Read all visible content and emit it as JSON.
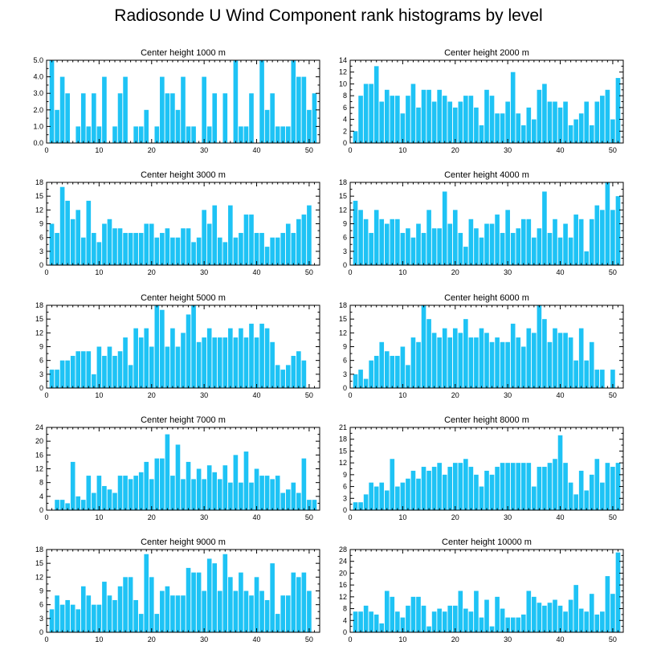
{
  "figure_title": "Radiosonde U Wind Component rank histograms by level",
  "colors": {
    "bar": "#1ec3f5",
    "axis": "#000000",
    "background": "#ffffff"
  },
  "chart_data": [
    {
      "type": "bar",
      "title": "Center height 1000 m",
      "xlim": [
        0,
        52
      ],
      "xticks": [
        0,
        10,
        20,
        30,
        40,
        50
      ],
      "ylim": [
        0,
        5
      ],
      "yticks": [
        "0.0",
        "1.0",
        "2.0",
        "3.0",
        "4.0",
        "5.0"
      ],
      "x": [
        1,
        2,
        3,
        4,
        5,
        6,
        7,
        8,
        9,
        10,
        11,
        12,
        13,
        14,
        15,
        16,
        17,
        18,
        19,
        20,
        21,
        22,
        23,
        24,
        25,
        26,
        27,
        28,
        29,
        30,
        31,
        32,
        33,
        34,
        35,
        36,
        37,
        38,
        39,
        40,
        41,
        42,
        43,
        44,
        45,
        46,
        47,
        48,
        49,
        50,
        51
      ],
      "values": [
        5,
        2,
        4,
        3,
        0,
        1,
        3,
        1,
        3,
        1,
        4,
        0,
        1,
        3,
        4,
        0,
        1,
        1,
        2,
        0,
        1,
        4,
        3,
        3,
        2,
        4,
        1,
        1,
        0,
        4,
        1,
        3,
        0,
        3,
        0,
        5,
        1,
        1,
        3,
        0,
        5,
        2,
        3,
        1,
        1,
        1,
        5,
        4,
        4,
        2,
        3
      ]
    },
    {
      "type": "bar",
      "title": "Center height 2000 m",
      "xlim": [
        0,
        52
      ],
      "xticks": [
        0,
        10,
        20,
        30,
        40,
        50
      ],
      "ylim": [
        0,
        14
      ],
      "yticks": [
        "0",
        "2",
        "4",
        "6",
        "8",
        "10",
        "12",
        "14"
      ],
      "x": [
        1,
        2,
        3,
        4,
        5,
        6,
        7,
        8,
        9,
        10,
        11,
        12,
        13,
        14,
        15,
        16,
        17,
        18,
        19,
        20,
        21,
        22,
        23,
        24,
        25,
        26,
        27,
        28,
        29,
        30,
        31,
        32,
        33,
        34,
        35,
        36,
        37,
        38,
        39,
        40,
        41,
        42,
        43,
        44,
        45,
        46,
        47,
        48,
        49,
        50,
        51
      ],
      "values": [
        2,
        8,
        10,
        10,
        13,
        7,
        9,
        8,
        8,
        5,
        8,
        10,
        6,
        9,
        9,
        7,
        9,
        8,
        7,
        6,
        7,
        8,
        8,
        6,
        3,
        9,
        8,
        5,
        5,
        7,
        12,
        5,
        3,
        6,
        4,
        9,
        10,
        7,
        7,
        6,
        7,
        3,
        4,
        5,
        7,
        3,
        7,
        8,
        9,
        4,
        11
      ]
    },
    {
      "type": "bar",
      "title": "Center height 3000 m",
      "xlim": [
        0,
        52
      ],
      "xticks": [
        0,
        10,
        20,
        30,
        40,
        50
      ],
      "ylim": [
        0,
        18
      ],
      "yticks": [
        "0",
        "3",
        "6",
        "9",
        "12",
        "15",
        "18"
      ],
      "x": [
        1,
        2,
        3,
        4,
        5,
        6,
        7,
        8,
        9,
        10,
        11,
        12,
        13,
        14,
        15,
        16,
        17,
        18,
        19,
        20,
        21,
        22,
        23,
        24,
        25,
        26,
        27,
        28,
        29,
        30,
        31,
        32,
        33,
        34,
        35,
        36,
        37,
        38,
        39,
        40,
        41,
        42,
        43,
        44,
        45,
        46,
        47,
        48,
        49,
        50,
        51
      ],
      "values": [
        9,
        7,
        17,
        14,
        10,
        12,
        6,
        14,
        7,
        5,
        9,
        10,
        8,
        8,
        7,
        7,
        7,
        7,
        9,
        9,
        6,
        7,
        8,
        6,
        6,
        8,
        8,
        5,
        6,
        12,
        9,
        13,
        6,
        5,
        13,
        6,
        7,
        11,
        11,
        7,
        7,
        4,
        6,
        6,
        7,
        9,
        7,
        10,
        11,
        13,
        0
      ]
    },
    {
      "type": "bar",
      "title": "Center height 4000 m",
      "xlim": [
        0,
        52
      ],
      "xticks": [
        0,
        10,
        20,
        30,
        40,
        50
      ],
      "ylim": [
        0,
        18
      ],
      "yticks": [
        "0",
        "3",
        "6",
        "9",
        "12",
        "15",
        "18"
      ],
      "x": [
        1,
        2,
        3,
        4,
        5,
        6,
        7,
        8,
        9,
        10,
        11,
        12,
        13,
        14,
        15,
        16,
        17,
        18,
        19,
        20,
        21,
        22,
        23,
        24,
        25,
        26,
        27,
        28,
        29,
        30,
        31,
        32,
        33,
        34,
        35,
        36,
        37,
        38,
        39,
        40,
        41,
        42,
        43,
        44,
        45,
        46,
        47,
        48,
        49,
        50,
        51
      ],
      "values": [
        14,
        12,
        10,
        7,
        12,
        10,
        9,
        10,
        10,
        7,
        8,
        6,
        9,
        7,
        12,
        8,
        8,
        16,
        9,
        12,
        7,
        4,
        10,
        8,
        6,
        9,
        9,
        11,
        7,
        12,
        7,
        8,
        10,
        10,
        6,
        8,
        16,
        7,
        10,
        6,
        9,
        6,
        11,
        10,
        3,
        10,
        13,
        12,
        18,
        12,
        15
      ]
    },
    {
      "type": "bar",
      "title": "Center height 5000 m",
      "xlim": [
        0,
        52
      ],
      "xticks": [
        0,
        10,
        20,
        30,
        40,
        50
      ],
      "ylim": [
        0,
        18
      ],
      "yticks": [
        "0",
        "3",
        "6",
        "9",
        "12",
        "15",
        "18"
      ],
      "x": [
        1,
        2,
        3,
        4,
        5,
        6,
        7,
        8,
        9,
        10,
        11,
        12,
        13,
        14,
        15,
        16,
        17,
        18,
        19,
        20,
        21,
        22,
        23,
        24,
        25,
        26,
        27,
        28,
        29,
        30,
        31,
        32,
        33,
        34,
        35,
        36,
        37,
        38,
        39,
        40,
        41,
        42,
        43,
        44,
        45,
        46,
        47,
        48,
        49,
        50,
        51
      ],
      "values": [
        4,
        4,
        6,
        6,
        7,
        8,
        8,
        8,
        3,
        9,
        7,
        9,
        7,
        8,
        11,
        5,
        13,
        11,
        13,
        9,
        18,
        17,
        9,
        13,
        9,
        12,
        16,
        18,
        10,
        11,
        13,
        11,
        11,
        11,
        13,
        11,
        13,
        11,
        14,
        11,
        14,
        13,
        10,
        5,
        4,
        5,
        7,
        8,
        6,
        0,
        0
      ]
    },
    {
      "type": "bar",
      "title": "Center height 6000 m",
      "xlim": [
        0,
        52
      ],
      "xticks": [
        0,
        10,
        20,
        30,
        40,
        50
      ],
      "ylim": [
        0,
        18
      ],
      "yticks": [
        "0",
        "3",
        "6",
        "9",
        "12",
        "15",
        "18"
      ],
      "x": [
        1,
        2,
        3,
        4,
        5,
        6,
        7,
        8,
        9,
        10,
        11,
        12,
        13,
        14,
        15,
        16,
        17,
        18,
        19,
        20,
        21,
        22,
        23,
        24,
        25,
        26,
        27,
        28,
        29,
        30,
        31,
        32,
        33,
        34,
        35,
        36,
        37,
        38,
        39,
        40,
        41,
        42,
        43,
        44,
        45,
        46,
        47,
        48,
        49,
        50,
        51
      ],
      "values": [
        3,
        4,
        2,
        6,
        7,
        10,
        8,
        7,
        7,
        9,
        5,
        11,
        10,
        18,
        15,
        12,
        11,
        13,
        11,
        13,
        12,
        15,
        11,
        11,
        13,
        12,
        10,
        11,
        10,
        10,
        14,
        11,
        9,
        13,
        12,
        18,
        15,
        10,
        13,
        12,
        12,
        11,
        6,
        13,
        6,
        10,
        4,
        4,
        0,
        4,
        0
      ]
    },
    {
      "type": "bar",
      "title": "Center height 7000 m",
      "xlim": [
        0,
        52
      ],
      "xticks": [
        0,
        10,
        20,
        30,
        40,
        50
      ],
      "ylim": [
        0,
        24
      ],
      "yticks": [
        "0",
        "4",
        "8",
        "12",
        "16",
        "20",
        "24"
      ],
      "x": [
        1,
        2,
        3,
        4,
        5,
        6,
        7,
        8,
        9,
        10,
        11,
        12,
        13,
        14,
        15,
        16,
        17,
        18,
        19,
        20,
        21,
        22,
        23,
        24,
        25,
        26,
        27,
        28,
        29,
        30,
        31,
        32,
        33,
        34,
        35,
        36,
        37,
        38,
        39,
        40,
        41,
        42,
        43,
        44,
        45,
        46,
        47,
        48,
        49,
        50,
        51
      ],
      "values": [
        0,
        3,
        3,
        2,
        14,
        4,
        3,
        10,
        5,
        10,
        7,
        6,
        5,
        10,
        10,
        9,
        10,
        11,
        14,
        9,
        15,
        15,
        22,
        10,
        19,
        9,
        14,
        9,
        12,
        9,
        13,
        11,
        9,
        13,
        8,
        16,
        8,
        17,
        8,
        12,
        10,
        10,
        9,
        10,
        5,
        6,
        8,
        5,
        15,
        3,
        3
      ]
    },
    {
      "type": "bar",
      "title": "Center height 8000 m",
      "xlim": [
        0,
        52
      ],
      "xticks": [
        0,
        10,
        20,
        30,
        40,
        50
      ],
      "ylim": [
        0,
        21
      ],
      "yticks": [
        "0",
        "3",
        "6",
        "9",
        "12",
        "15",
        "18",
        "21"
      ],
      "x": [
        1,
        2,
        3,
        4,
        5,
        6,
        7,
        8,
        9,
        10,
        11,
        12,
        13,
        14,
        15,
        16,
        17,
        18,
        19,
        20,
        21,
        22,
        23,
        24,
        25,
        26,
        27,
        28,
        29,
        30,
        31,
        32,
        33,
        34,
        35,
        36,
        37,
        38,
        39,
        40,
        41,
        42,
        43,
        44,
        45,
        46,
        47,
        48,
        49,
        50,
        51
      ],
      "values": [
        2,
        2,
        4,
        7,
        6,
        7,
        5,
        13,
        6,
        7,
        8,
        10,
        8,
        11,
        10,
        11,
        12,
        9,
        11,
        12,
        12,
        13,
        11,
        9,
        6,
        10,
        9,
        11,
        12,
        12,
        12,
        12,
        12,
        12,
        6,
        11,
        11,
        12,
        13,
        19,
        12,
        7,
        4,
        10,
        5,
        9,
        13,
        7,
        12,
        11,
        12
      ]
    },
    {
      "type": "bar",
      "title": "Center height 9000 m",
      "xlim": [
        0,
        52
      ],
      "xticks": [
        0,
        10,
        20,
        30,
        40,
        50
      ],
      "ylim": [
        0,
        18
      ],
      "yticks": [
        "0",
        "3",
        "6",
        "9",
        "12",
        "15",
        "18"
      ],
      "x": [
        1,
        2,
        3,
        4,
        5,
        6,
        7,
        8,
        9,
        10,
        11,
        12,
        13,
        14,
        15,
        16,
        17,
        18,
        19,
        20,
        21,
        22,
        23,
        24,
        25,
        26,
        27,
        28,
        29,
        30,
        31,
        32,
        33,
        34,
        35,
        36,
        37,
        38,
        39,
        40,
        41,
        42,
        43,
        44,
        45,
        46,
        47,
        48,
        49,
        50,
        51
      ],
      "values": [
        5,
        8,
        6,
        7,
        6,
        5,
        10,
        8,
        6,
        6,
        11,
        8,
        7,
        10,
        12,
        12,
        7,
        4,
        17,
        12,
        4,
        9,
        10,
        8,
        8,
        8,
        14,
        13,
        13,
        9,
        16,
        15,
        9,
        17,
        12,
        9,
        13,
        9,
        8,
        12,
        9,
        7,
        15,
        4,
        8,
        8,
        13,
        12,
        13,
        9,
        0
      ]
    },
    {
      "type": "bar",
      "title": "Center height 10000 m",
      "xlim": [
        0,
        52
      ],
      "xticks": [
        0,
        10,
        20,
        30,
        40,
        50
      ],
      "ylim": [
        0,
        28
      ],
      "yticks": [
        "0",
        "4",
        "8",
        "12",
        "16",
        "20",
        "24",
        "28"
      ],
      "x": [
        1,
        2,
        3,
        4,
        5,
        6,
        7,
        8,
        9,
        10,
        11,
        12,
        13,
        14,
        15,
        16,
        17,
        18,
        19,
        20,
        21,
        22,
        23,
        24,
        25,
        26,
        27,
        28,
        29,
        30,
        31,
        32,
        33,
        34,
        35,
        36,
        37,
        38,
        39,
        40,
        41,
        42,
        43,
        44,
        45,
        46,
        47,
        48,
        49,
        50,
        51
      ],
      "values": [
        7,
        7,
        9,
        7,
        6,
        3,
        14,
        12,
        7,
        5,
        9,
        12,
        12,
        9,
        2,
        7,
        8,
        7,
        9,
        9,
        14,
        8,
        7,
        14,
        5,
        11,
        2,
        12,
        8,
        5,
        5,
        5,
        6,
        14,
        12,
        10,
        9,
        10,
        11,
        9,
        7,
        11,
        16,
        8,
        7,
        13,
        6,
        7,
        19,
        13,
        27
      ]
    }
  ]
}
